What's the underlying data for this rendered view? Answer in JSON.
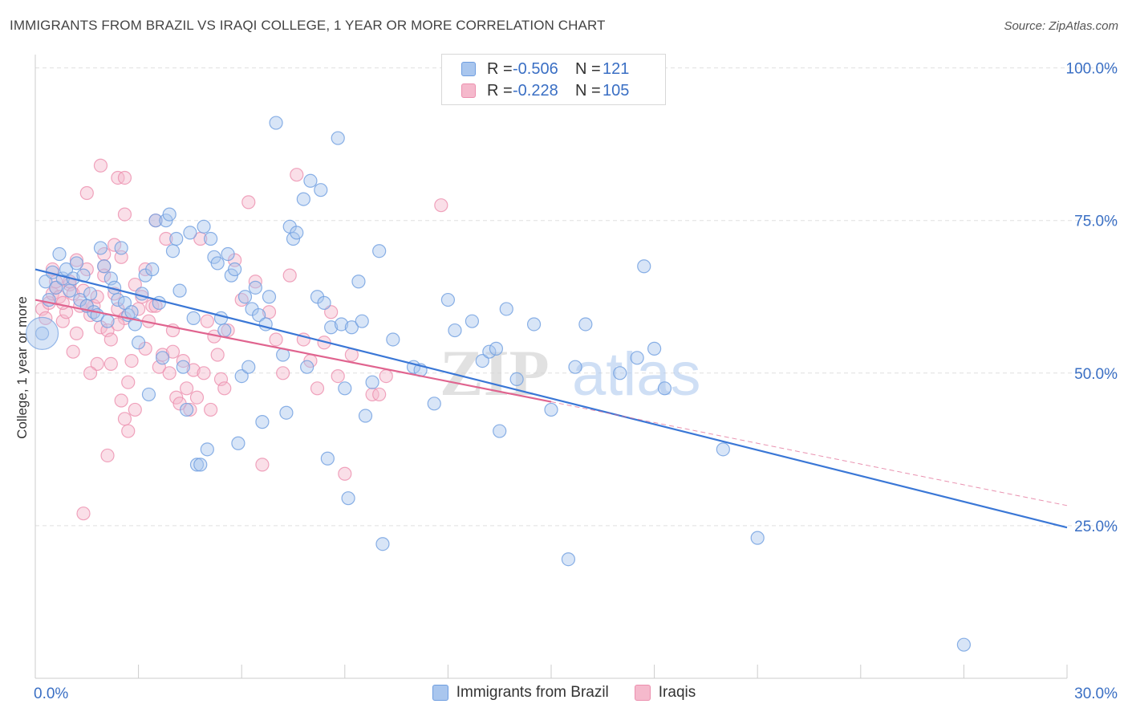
{
  "title": "IMMIGRANTS FROM BRAZIL VS IRAQI COLLEGE, 1 YEAR OR MORE CORRELATION CHART",
  "source": "Source: ZipAtlas.com",
  "watermark": {
    "zip": "ZIP",
    "atlas": "atlas"
  },
  "colors": {
    "blue": "#3a77d6",
    "blue_fill": "#a9c6ee",
    "blue_stroke": "#6e9de0",
    "pink": "#e0648f",
    "pink_fill": "#f5b9cc",
    "pink_stroke": "#ec8fae",
    "axis_text": "#3a6fc4",
    "grid": "#e0e0e0"
  },
  "legend": {
    "rows": [
      {
        "r_label": "R =",
        "r_value": "-0.506",
        "n_label": "N =",
        "n_value": "121"
      },
      {
        "r_label": "R =",
        "r_value": "-0.228",
        "n_label": "N =",
        "n_value": "105"
      }
    ]
  },
  "bottom_legend": [
    "Immigrants from Brazil",
    "Iraqis"
  ],
  "chart_data": {
    "type": "scatter",
    "title": "IMMIGRANTS FROM BRAZIL VS IRAQI COLLEGE, 1 YEAR OR MORE CORRELATION CHART",
    "xlabel": "",
    "ylabel": "College, 1 year or more",
    "xlim": [
      0,
      30
    ],
    "ylim": [
      0,
      101
    ],
    "x_tick_labels": [
      {
        "value": 0,
        "label": "0.0%"
      },
      {
        "value": 30,
        "label": "30.0%"
      }
    ],
    "y_tick_labels": [
      {
        "value": 25,
        "label": "25.0%"
      },
      {
        "value": 50,
        "label": "50.0%"
      },
      {
        "value": 75,
        "label": "75.0%"
      },
      {
        "value": 100,
        "label": "100.0%"
      }
    ],
    "x_minor_ticks": [
      0,
      3,
      6,
      9,
      12,
      15,
      18,
      21,
      24,
      27,
      30
    ],
    "series": [
      {
        "name": "Immigrants from Brazil",
        "color": "blue",
        "r": -0.506,
        "n": 121,
        "trend": {
          "x0": 0,
          "y0": 67.0,
          "x1": 30,
          "y1": 24.7
        },
        "points": [
          [
            0.2,
            56.5
          ],
          [
            0.3,
            65.0
          ],
          [
            0.4,
            62.0
          ],
          [
            0.5,
            66.5
          ],
          [
            0.6,
            64.0
          ],
          [
            0.7,
            69.5
          ],
          [
            0.8,
            65.5
          ],
          [
            0.9,
            67.0
          ],
          [
            1.0,
            63.5
          ],
          [
            1.1,
            65.5
          ],
          [
            1.2,
            68.0
          ],
          [
            1.3,
            62.0
          ],
          [
            1.4,
            66.0
          ],
          [
            1.5,
            61.0
          ],
          [
            1.6,
            63.0
          ],
          [
            1.7,
            60.0
          ],
          [
            1.8,
            59.5
          ],
          [
            1.9,
            70.5
          ],
          [
            2.0,
            67.5
          ],
          [
            2.1,
            58.5
          ],
          [
            2.2,
            65.5
          ],
          [
            2.3,
            64.0
          ],
          [
            2.4,
            62.0
          ],
          [
            2.5,
            70.5
          ],
          [
            2.6,
            61.5
          ],
          [
            2.7,
            59.5
          ],
          [
            2.8,
            60.0
          ],
          [
            2.9,
            58.0
          ],
          [
            3.0,
            55.0
          ],
          [
            3.1,
            63.0
          ],
          [
            3.2,
            66.0
          ],
          [
            3.3,
            46.5
          ],
          [
            3.4,
            67.0
          ],
          [
            3.5,
            75.0
          ],
          [
            3.6,
            61.5
          ],
          [
            3.7,
            52.5
          ],
          [
            3.8,
            75.0
          ],
          [
            3.9,
            76.0
          ],
          [
            4.0,
            70.0
          ],
          [
            4.1,
            72.0
          ],
          [
            4.2,
            63.5
          ],
          [
            4.3,
            51.0
          ],
          [
            4.4,
            44.0
          ],
          [
            4.5,
            73.0
          ],
          [
            4.6,
            59.0
          ],
          [
            4.7,
            35.0
          ],
          [
            4.8,
            35.0
          ],
          [
            4.9,
            74.0
          ],
          [
            5.0,
            37.5
          ],
          [
            5.1,
            72.0
          ],
          [
            5.2,
            69.0
          ],
          [
            5.3,
            68.0
          ],
          [
            5.4,
            59.0
          ],
          [
            5.5,
            57.0
          ],
          [
            5.6,
            69.5
          ],
          [
            5.7,
            66.0
          ],
          [
            5.8,
            67.0
          ],
          [
            5.9,
            38.5
          ],
          [
            6.0,
            49.5
          ],
          [
            6.1,
            62.5
          ],
          [
            6.2,
            51.0
          ],
          [
            6.3,
            60.5
          ],
          [
            6.4,
            64.0
          ],
          [
            6.5,
            59.5
          ],
          [
            6.6,
            42.0
          ],
          [
            6.7,
            58.0
          ],
          [
            6.8,
            62.5
          ],
          [
            7.0,
            91.0
          ],
          [
            7.2,
            53.0
          ],
          [
            7.3,
            43.5
          ],
          [
            7.4,
            74.0
          ],
          [
            7.5,
            72.0
          ],
          [
            7.6,
            73.0
          ],
          [
            7.8,
            78.5
          ],
          [
            7.9,
            51.0
          ],
          [
            8.0,
            81.5
          ],
          [
            8.2,
            62.5
          ],
          [
            8.3,
            80.0
          ],
          [
            8.4,
            61.5
          ],
          [
            8.5,
            36.0
          ],
          [
            8.6,
            57.5
          ],
          [
            8.8,
            88.5
          ],
          [
            8.9,
            58.0
          ],
          [
            9.0,
            47.5
          ],
          [
            9.1,
            29.5
          ],
          [
            9.2,
            57.5
          ],
          [
            9.4,
            65.0
          ],
          [
            9.5,
            58.5
          ],
          [
            9.6,
            43.0
          ],
          [
            9.8,
            48.5
          ],
          [
            10.0,
            70.0
          ],
          [
            10.1,
            22.0
          ],
          [
            10.4,
            55.5
          ],
          [
            11.0,
            51.0
          ],
          [
            11.2,
            50.5
          ],
          [
            11.6,
            45.0
          ],
          [
            12.0,
            62.0
          ],
          [
            12.2,
            57.0
          ],
          [
            12.7,
            58.5
          ],
          [
            13.0,
            52.0
          ],
          [
            13.2,
            53.5
          ],
          [
            13.4,
            54.0
          ],
          [
            13.5,
            40.5
          ],
          [
            13.7,
            60.5
          ],
          [
            14.0,
            49.0
          ],
          [
            14.5,
            58.0
          ],
          [
            15.0,
            44.0
          ],
          [
            15.5,
            19.5
          ],
          [
            15.7,
            51.0
          ],
          [
            16.0,
            58.0
          ],
          [
            17.0,
            50.0
          ],
          [
            17.5,
            52.5
          ],
          [
            17.7,
            67.5
          ],
          [
            18.0,
            54.0
          ],
          [
            18.3,
            47.5
          ],
          [
            20.0,
            37.5
          ],
          [
            21.0,
            23.0
          ],
          [
            27.0,
            5.5
          ]
        ]
      },
      {
        "name": "Iraqis",
        "color": "pink",
        "r": -0.228,
        "n": 105,
        "trend": {
          "x0": 0,
          "y0": 62.0,
          "x1": 15,
          "y1": 45.3
        },
        "trend_ext": {
          "x0": 15,
          "y0": 45.3,
          "x1": 30,
          "y1": 28.3
        },
        "points": [
          [
            0.2,
            60.5
          ],
          [
            0.3,
            59.0
          ],
          [
            0.4,
            61.5
          ],
          [
            0.5,
            63.0
          ],
          [
            0.6,
            64.0
          ],
          [
            0.7,
            62.5
          ],
          [
            0.8,
            58.5
          ],
          [
            0.9,
            60.0
          ],
          [
            1.0,
            64.5
          ],
          [
            1.1,
            63.0
          ],
          [
            1.2,
            56.5
          ],
          [
            1.3,
            61.0
          ],
          [
            1.4,
            63.5
          ],
          [
            1.5,
            67.0
          ],
          [
            1.6,
            59.5
          ],
          [
            1.7,
            61.0
          ],
          [
            1.8,
            62.5
          ],
          [
            1.9,
            57.5
          ],
          [
            2.0,
            69.5
          ],
          [
            2.1,
            57.0
          ],
          [
            2.2,
            55.5
          ],
          [
            2.3,
            63.0
          ],
          [
            2.4,
            60.5
          ],
          [
            2.5,
            45.5
          ],
          [
            2.6,
            42.5
          ],
          [
            2.7,
            48.5
          ],
          [
            2.8,
            52.0
          ],
          [
            2.9,
            64.5
          ],
          [
            3.0,
            60.5
          ],
          [
            3.1,
            62.5
          ],
          [
            3.2,
            67.0
          ],
          [
            3.3,
            58.5
          ],
          [
            3.4,
            61.0
          ],
          [
            3.5,
            75.0
          ],
          [
            3.6,
            51.0
          ],
          [
            3.7,
            53.0
          ],
          [
            3.8,
            72.0
          ],
          [
            3.9,
            50.0
          ],
          [
            4.0,
            53.5
          ],
          [
            4.1,
            46.0
          ],
          [
            4.2,
            45.0
          ],
          [
            4.3,
            52.0
          ],
          [
            4.4,
            47.5
          ],
          [
            4.5,
            44.0
          ],
          [
            4.6,
            50.5
          ],
          [
            4.7,
            46.0
          ],
          [
            4.8,
            72.0
          ],
          [
            4.9,
            50.0
          ],
          [
            5.0,
            58.5
          ],
          [
            5.1,
            44.0
          ],
          [
            5.2,
            56.0
          ],
          [
            5.3,
            53.0
          ],
          [
            5.4,
            49.0
          ],
          [
            5.5,
            47.5
          ],
          [
            5.6,
            57.0
          ],
          [
            5.8,
            68.5
          ],
          [
            6.0,
            62.0
          ],
          [
            6.2,
            78.0
          ],
          [
            6.4,
            65.0
          ],
          [
            6.6,
            35.0
          ],
          [
            6.8,
            60.0
          ],
          [
            7.0,
            55.5
          ],
          [
            7.2,
            50.0
          ],
          [
            7.4,
            66.0
          ],
          [
            7.6,
            82.5
          ],
          [
            7.8,
            55.5
          ],
          [
            8.0,
            52.0
          ],
          [
            8.2,
            47.5
          ],
          [
            8.4,
            55.0
          ],
          [
            8.6,
            60.0
          ],
          [
            8.8,
            49.5
          ],
          [
            9.0,
            33.5
          ],
          [
            9.2,
            53.0
          ],
          [
            9.8,
            46.5
          ],
          [
            10.0,
            46.5
          ],
          [
            10.2,
            49.5
          ],
          [
            11.8,
            77.5
          ],
          [
            1.5,
            79.5
          ],
          [
            1.9,
            84.0
          ],
          [
            2.4,
            82.0
          ],
          [
            2.6,
            82.0
          ],
          [
            2.6,
            76.0
          ],
          [
            2.0,
            67.5
          ],
          [
            1.8,
            51.5
          ],
          [
            2.2,
            51.5
          ],
          [
            1.5,
            61.0
          ],
          [
            1.4,
            27.0
          ],
          [
            2.1,
            36.5
          ],
          [
            2.7,
            40.5
          ],
          [
            2.9,
            44.0
          ],
          [
            0.8,
            61.5
          ],
          [
            0.6,
            65.0
          ],
          [
            0.5,
            67.0
          ],
          [
            1.0,
            65.0
          ],
          [
            1.2,
            68.5
          ],
          [
            2.0,
            66.0
          ],
          [
            2.3,
            71.0
          ],
          [
            2.5,
            69.0
          ],
          [
            1.6,
            50.0
          ],
          [
            1.1,
            53.5
          ],
          [
            2.6,
            59.0
          ],
          [
            3.5,
            61.0
          ],
          [
            4.0,
            57.0
          ],
          [
            3.2,
            54.0
          ],
          [
            2.4,
            58.0
          ]
        ]
      }
    ]
  }
}
